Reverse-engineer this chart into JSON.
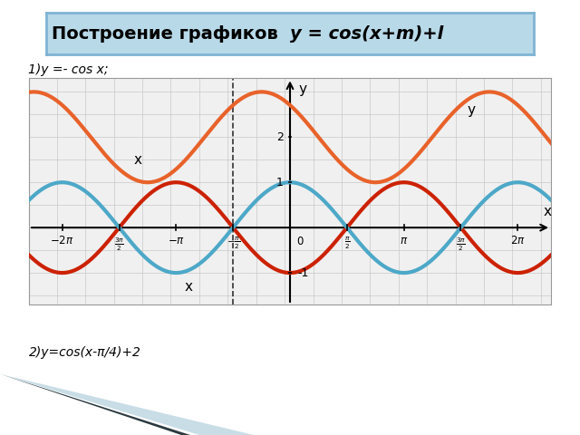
{
  "title": "Построение графиков  y = cos(x+m)+l",
  "title_bg": "#b8d9e8",
  "title_border": "#7fb3d3",
  "title_fontsize": 14,
  "label1": "1)y =- cos x;",
  "label2": "2)y=cos(x-π/4)+2",
  "curve_orange_color": "#e8622a",
  "curve_red_color": "#cc2200",
  "curve_cyan_color": "#4da8c8",
  "xlim": [
    -7.2,
    7.2
  ],
  "ylim": [
    -1.7,
    3.3
  ],
  "grid_color": "#c8c8c8",
  "bg_color": "#f0f0f0",
  "axis_color": "#000000",
  "dashed_x": -1.5707963,
  "pi": 3.14159265358979
}
